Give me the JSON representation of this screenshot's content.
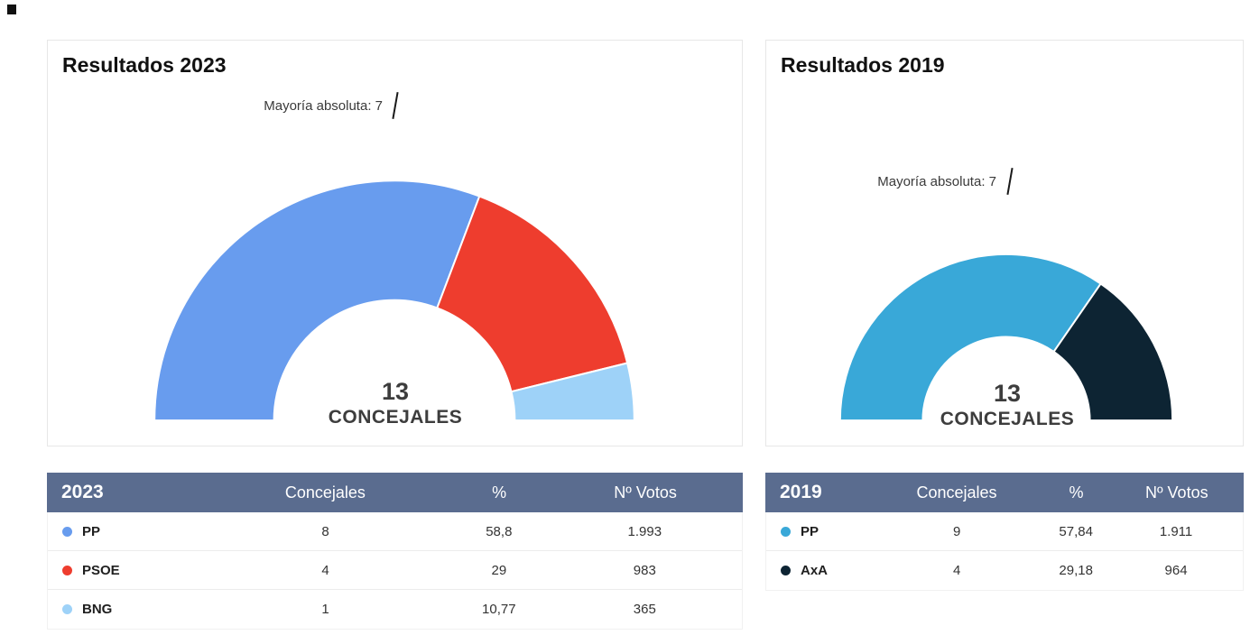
{
  "panels": [
    {
      "title": "Resultados 2023",
      "majority_label": "Mayoría absoluta: 7",
      "center_value": "13",
      "center_label": "CONCEJALES",
      "table_headers": [
        "2023",
        "Concejales",
        "%",
        "Nº Votos"
      ]
    },
    {
      "title": "Resultados 2019",
      "majority_label": "Mayoría absoluta: 7",
      "center_value": "13",
      "center_label": "CONCEJALES",
      "table_headers": [
        "2019",
        "Concejales",
        "%",
        "Nº Votos"
      ]
    }
  ],
  "chart_data": [
    {
      "type": "pie",
      "subtype": "half-donut-seats",
      "title": "Resultados 2023",
      "total_seats": 13,
      "majority_seats": 7,
      "annotation": "Mayoría absoluta: 7",
      "center_label": "13 CONCEJALES",
      "series": [
        {
          "name": "PP",
          "seats": 8,
          "percent": "58,8",
          "votes": "1.993",
          "color": "#689cee"
        },
        {
          "name": "PSOE",
          "seats": 4,
          "percent": "29",
          "votes": "983",
          "color": "#ee3d2e"
        },
        {
          "name": "BNG",
          "seats": 1,
          "percent": "10,77",
          "votes": "365",
          "color": "#9ed2f8"
        }
      ]
    },
    {
      "type": "pie",
      "subtype": "half-donut-seats",
      "title": "Resultados 2019",
      "total_seats": 13,
      "majority_seats": 7,
      "annotation": "Mayoría absoluta: 7",
      "center_label": "13 CONCEJALES",
      "series": [
        {
          "name": "PP",
          "seats": 9,
          "percent": "57,84",
          "votes": "1.911",
          "color": "#39a8d8"
        },
        {
          "name": "AxA",
          "seats": 4,
          "percent": "29,18",
          "votes": "964",
          "color": "#0d2433"
        }
      ]
    }
  ]
}
